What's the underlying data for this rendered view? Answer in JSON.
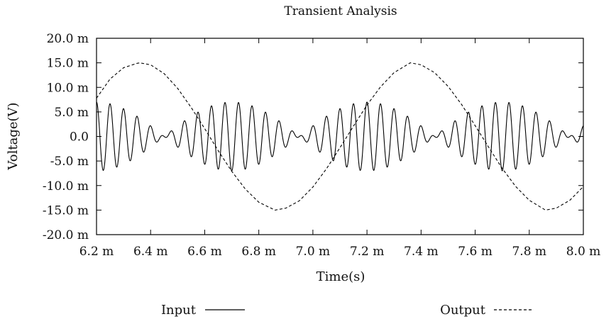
{
  "chart_data": {
    "type": "line",
    "title": "Transient Analysis",
    "xlabel": "Time(s)",
    "ylabel": "Voltage(V)",
    "xlim": [
      6.2,
      8.0
    ],
    "ylim": [
      -20.0,
      20.0
    ],
    "x_unit_scale": "m",
    "x_ticks": [
      6.2,
      6.4,
      6.6,
      6.8,
      7.0,
      7.2,
      7.4,
      7.6,
      7.8,
      8.0
    ],
    "x_tick_labels": [
      "6.2 m",
      "6.4 m",
      "6.6 m",
      "6.8 m",
      "7.0 m",
      "7.2 m",
      "7.4 m",
      "7.6 m",
      "7.8 m",
      "8.0 m"
    ],
    "y_ticks": [
      20.0,
      15.0,
      10.0,
      5.0,
      0.0,
      -5.0,
      -10.0,
      -15.0,
      -20.0
    ],
    "y_tick_labels": [
      "20.0 m",
      "15.0 m",
      "10.0 m",
      "5.0 m",
      "0.0",
      "-5.0 m",
      "-10.0 m",
      "-15.0 m",
      "-20.0 m"
    ],
    "grid": false,
    "legend_position": "bottom",
    "series": [
      {
        "name": "Input",
        "style": "solid",
        "color": "#000000",
        "description_values": {
          "form": "amplitude-modulated sine",
          "carrier_frequency_hz": 20000,
          "envelope_amplitude_mV": 7.0,
          "envelope_frequency_hz": 1000,
          "envelope_peak_times_ms": [
            6.2,
            6.7,
            7.2,
            7.7
          ],
          "envelope_null_times_ms": [
            6.45,
            6.95,
            7.45,
            7.95
          ]
        },
        "x": [
          6.2,
          6.25,
          6.3,
          6.35,
          6.4,
          6.45,
          6.5,
          6.55,
          6.6,
          6.65,
          6.7,
          6.75,
          6.8,
          6.85,
          6.9,
          6.95,
          7.0,
          7.05,
          7.1,
          7.15,
          7.2,
          7.25,
          7.3,
          7.35,
          7.4,
          7.45,
          7.5,
          7.55,
          7.6,
          7.65,
          7.7,
          7.75,
          7.8,
          7.85,
          7.9,
          7.95,
          8.0
        ],
        "envelope": [
          7.0,
          6.7,
          5.7,
          4.1,
          2.2,
          0.0,
          2.2,
          4.1,
          5.7,
          6.7,
          7.0,
          6.7,
          5.7,
          4.1,
          2.2,
          0.0,
          2.2,
          4.1,
          5.7,
          6.7,
          7.0,
          6.7,
          5.7,
          4.1,
          2.2,
          0.0,
          2.2,
          4.1,
          5.7,
          6.7,
          7.0,
          6.7,
          5.7,
          4.1,
          2.2,
          0.0,
          2.2
        ]
      },
      {
        "name": "Output",
        "style": "dashed",
        "color": "#000000",
        "x": [
          6.2,
          6.25,
          6.3,
          6.35,
          6.36,
          6.4,
          6.45,
          6.5,
          6.55,
          6.6,
          6.65,
          6.7,
          6.75,
          6.8,
          6.86,
          6.9,
          6.95,
          7.0,
          7.05,
          7.1,
          7.15,
          7.2,
          7.25,
          7.3,
          7.36,
          7.4,
          7.45,
          7.5,
          7.55,
          7.6,
          7.65,
          7.7,
          7.75,
          7.8,
          7.86,
          7.9,
          7.95,
          8.0
        ],
        "y": [
          7.8,
          11.7,
          14.0,
          14.9,
          15.0,
          14.6,
          12.8,
          9.8,
          5.9,
          1.6,
          -2.9,
          -7.1,
          -10.7,
          -13.4,
          -15.0,
          -14.6,
          -13.1,
          -10.3,
          -6.6,
          -2.3,
          2.1,
          6.4,
          10.1,
          13.0,
          15.0,
          14.6,
          13.0,
          10.2,
          6.5,
          2.2,
          -2.2,
          -6.5,
          -10.2,
          -13.0,
          -15.0,
          -14.6,
          -13.0,
          -10.2
        ]
      }
    ]
  },
  "legend": {
    "input_label": "Input",
    "output_label": "Output"
  }
}
